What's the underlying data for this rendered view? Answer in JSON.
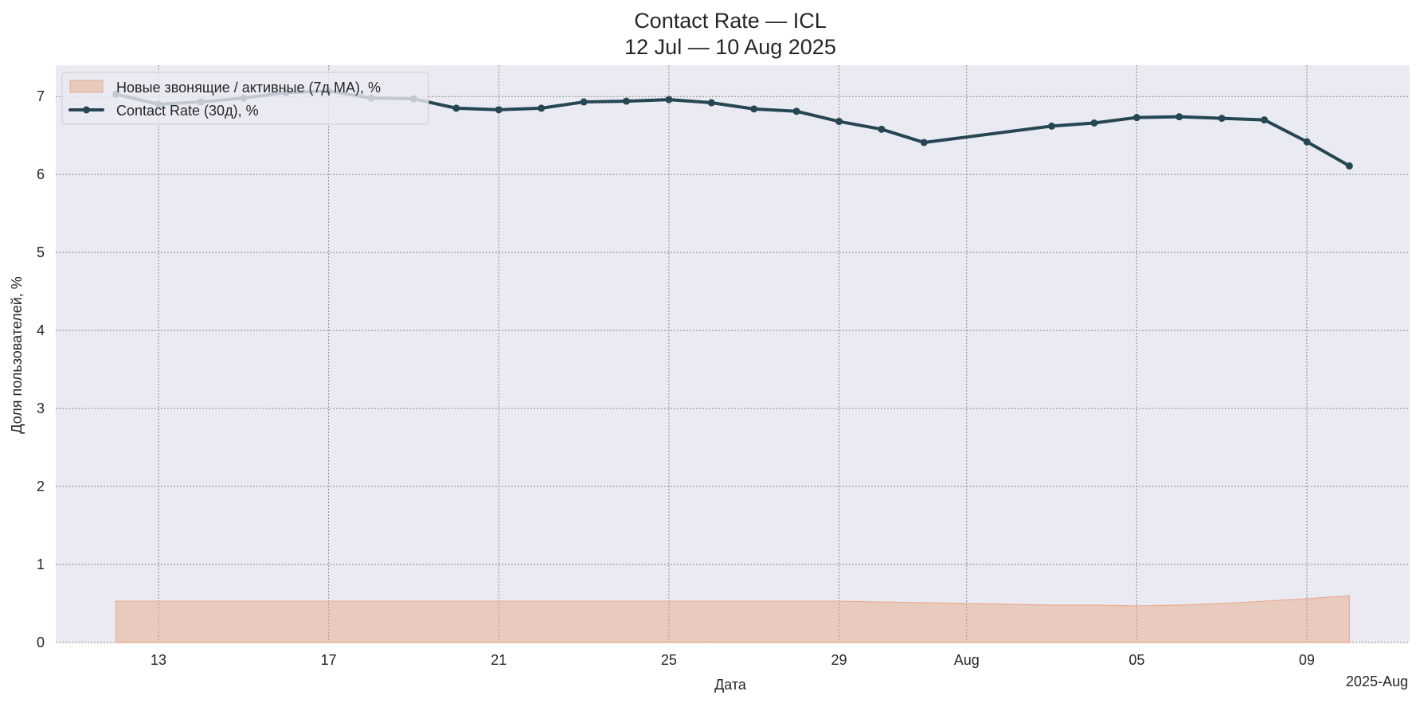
{
  "chart_data": {
    "type": "line",
    "title": "Contact Rate — ICL",
    "subtitle": "12 Jul — 10 Aug 2025",
    "xlabel": "Дата",
    "ylabel": "Доля пользователей, %",
    "x_offset_label": "2025-Aug",
    "ylim": [
      0,
      7.4
    ],
    "xlim": [
      "2025-07-10 14:00",
      "2025-08-11 10:00"
    ],
    "grid": true,
    "legend_position": "top-left",
    "y_ticks": [
      0,
      1,
      2,
      3,
      4,
      5,
      6,
      7
    ],
    "x_ticks": [
      {
        "date": "2025-07-13",
        "label": "13"
      },
      {
        "date": "2025-07-17",
        "label": "17"
      },
      {
        "date": "2025-07-21",
        "label": "21"
      },
      {
        "date": "2025-07-25",
        "label": "25"
      },
      {
        "date": "2025-07-29",
        "label": "29"
      },
      {
        "date": "2025-08-01",
        "label": "Aug"
      },
      {
        "date": "2025-08-05",
        "label": "05"
      },
      {
        "date": "2025-08-09",
        "label": "09"
      }
    ],
    "series": [
      {
        "name": "Новые звонящие / активные (7д MA), %",
        "kind": "area",
        "color": "#e8a98a",
        "x": [
          "2025-07-12",
          "2025-07-13",
          "2025-07-14",
          "2025-07-15",
          "2025-07-16",
          "2025-07-17",
          "2025-07-18",
          "2025-07-19",
          "2025-07-20",
          "2025-07-21",
          "2025-07-22",
          "2025-07-23",
          "2025-07-24",
          "2025-07-25",
          "2025-07-26",
          "2025-07-27",
          "2025-07-28",
          "2025-07-29",
          "2025-07-30",
          "2025-07-31",
          "2025-08-01",
          "2025-08-02",
          "2025-08-03",
          "2025-08-04",
          "2025-08-05",
          "2025-08-06",
          "2025-08-07",
          "2025-08-08",
          "2025-08-09",
          "2025-08-10"
        ],
        "values": [
          0.53,
          0.53,
          0.53,
          0.53,
          0.53,
          0.53,
          0.53,
          0.53,
          0.53,
          0.53,
          0.53,
          0.53,
          0.53,
          0.53,
          0.53,
          0.53,
          0.53,
          0.53,
          0.52,
          0.51,
          0.5,
          0.49,
          0.48,
          0.48,
          0.47,
          0.48,
          0.5,
          0.53,
          0.56,
          0.6
        ]
      },
      {
        "name": "Contact Rate (30д), %",
        "kind": "line",
        "color": "#264653",
        "x": [
          "2025-07-12",
          "2025-07-13",
          "2025-07-14",
          "2025-07-15",
          "2025-07-16",
          "2025-07-17",
          "2025-07-18",
          "2025-07-19",
          "2025-07-20",
          "2025-07-21",
          "2025-07-22",
          "2025-07-23",
          "2025-07-24",
          "2025-07-25",
          "2025-07-26",
          "2025-07-27",
          "2025-07-28",
          "2025-07-29",
          "2025-07-30",
          "2025-07-31",
          "2025-08-03",
          "2025-08-04",
          "2025-08-05",
          "2025-08-06",
          "2025-08-07",
          "2025-08-08",
          "2025-08-09",
          "2025-08-10"
        ],
        "values": [
          7.03,
          6.9,
          6.93,
          6.98,
          7.05,
          7.07,
          6.98,
          6.97,
          6.85,
          6.83,
          6.85,
          6.93,
          6.94,
          6.96,
          6.92,
          6.84,
          6.81,
          6.68,
          6.58,
          6.41,
          6.62,
          6.66,
          6.73,
          6.74,
          6.72,
          6.7,
          6.42,
          6.11
        ]
      }
    ]
  }
}
